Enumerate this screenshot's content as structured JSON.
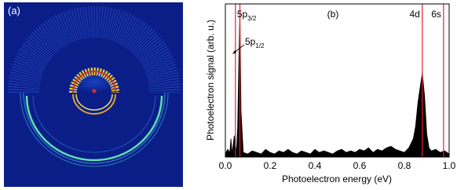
{
  "chart_data": {
    "type": "area",
    "panel_a_label": "(a)",
    "panel_b_label": "(b)",
    "x_label": "Photoelectron energy (eV)",
    "y_label": "Photoelectron signal (arb. u.)",
    "xlim": [
      0,
      1
    ],
    "ylim": [
      0,
      1
    ],
    "xticks": [
      {
        "value": 0,
        "label": "0.0"
      },
      0.2,
      0.4,
      0.6,
      0.8,
      {
        "value": 1,
        "label": "1.0"
      }
    ],
    "color": "#000000",
    "line_color": "#e8202a",
    "x": [
      0,
      0.01,
      0.02,
      0.025,
      0.03,
      0.04,
      0.05,
      0.055,
      0.06,
      0.065,
      0.07,
      0.08,
      0.1,
      0.12,
      0.14,
      0.16,
      0.18,
      0.2,
      0.22,
      0.24,
      0.26,
      0.28,
      0.3,
      0.32,
      0.34,
      0.36,
      0.38,
      0.4,
      0.42,
      0.44,
      0.46,
      0.48,
      0.5,
      0.52,
      0.54,
      0.56,
      0.58,
      0.6,
      0.62,
      0.64,
      0.66,
      0.68,
      0.7,
      0.72,
      0.74,
      0.76,
      0.78,
      0.8,
      0.82,
      0.84,
      0.85,
      0.86,
      0.87,
      0.88,
      0.89,
      0.9,
      0.91,
      0.92,
      0.94,
      0.96,
      0.98,
      1.0
    ],
    "values": [
      0.02,
      0.05,
      0.03,
      0.12,
      0.02,
      0.14,
      0.03,
      0.2,
      0.6,
      0.95,
      0.3,
      0.03,
      0.02,
      0.04,
      0.03,
      0.02,
      0.05,
      0.03,
      0.02,
      0.04,
      0.03,
      0.05,
      0.03,
      0.02,
      0.04,
      0.03,
      0.02,
      0.05,
      0.03,
      0.04,
      0.03,
      0.02,
      0.04,
      0.05,
      0.03,
      0.04,
      0.03,
      0.05,
      0.04,
      0.06,
      0.03,
      0.05,
      0.04,
      0.06,
      0.07,
      0.05,
      0.04,
      0.03,
      0.06,
      0.12,
      0.2,
      0.35,
      0.45,
      0.55,
      0.4,
      0.15,
      0.06,
      0.04,
      0.05,
      0.03,
      0.04,
      0.02
    ],
    "reference_lines": [
      {
        "label": "5p",
        "subscript": "3/2",
        "x": 0.045
      },
      {
        "label": "5p",
        "subscript": "1/2",
        "x": 0.065
      },
      {
        "label": "4d",
        "x": 0.88
      },
      {
        "label": "6s",
        "x": 0.975
      }
    ]
  }
}
